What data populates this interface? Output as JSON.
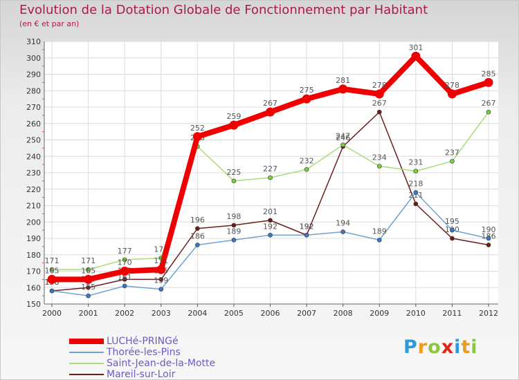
{
  "chart_data": {
    "type": "line",
    "title": "Evolution de la Dotation Globale de Fonctionnement par Habitant",
    "subtitle": "(en € et par an)",
    "x": [
      "2000",
      "2001",
      "2002",
      "2003",
      "2004",
      "2005",
      "2006",
      "2007",
      "2008",
      "2009",
      "2010",
      "2011",
      "2012"
    ],
    "ylim": [
      150,
      310
    ],
    "yticks": [
      150,
      160,
      170,
      180,
      190,
      200,
      210,
      220,
      230,
      240,
      250,
      260,
      270,
      280,
      290,
      300,
      310
    ],
    "xlabel": "",
    "ylabel": "",
    "series": [
      {
        "name": "Mareil-sur-Loir",
        "color": "#6b1c1c",
        "marker_color": "#6b1c1c",
        "labels_shown": true,
        "values": [
          158,
          160,
          165,
          165,
          196,
          198,
          201,
          192,
          246,
          267,
          211,
          190,
          186
        ],
        "labels": [
          "158",
          "160",
          "165",
          "165",
          "196",
          "198",
          "201",
          "192",
          "246",
          "267",
          "211",
          "190",
          "186"
        ]
      },
      {
        "name": "Thorée-les-Pins",
        "color": "#6fa3cf",
        "marker_color": "#3a78c2",
        "labels_shown": true,
        "values": [
          158,
          155,
          161,
          159,
          186,
          189,
          192,
          192,
          194,
          189,
          218,
          195,
          190
        ],
        "labels": [
          "158",
          "155",
          "161",
          "159",
          "186",
          "189",
          "192",
          "192",
          "194",
          "189",
          "218",
          "195",
          "190"
        ]
      },
      {
        "name": "Saint-Jean-de-la-Motte",
        "color": "#a8dc7a",
        "marker_color": "#7ccf3c",
        "labels_shown": true,
        "values": [
          171,
          171,
          177,
          178,
          246,
          225,
          227,
          232,
          247,
          234,
          231,
          237,
          267
        ],
        "labels": [
          "171",
          "171",
          "177",
          "178",
          "246",
          "225",
          "227",
          "232",
          "247",
          "234",
          "231",
          "237",
          "267"
        ]
      },
      {
        "name": "LUCHé-PRINGé",
        "color": "#ee0000",
        "marker_color": "#ee0000",
        "labels_shown": true,
        "values": [
          165,
          165,
          170,
          171,
          252,
          259,
          267,
          275,
          281,
          278,
          301,
          278,
          285
        ],
        "labels": [
          "165",
          "165",
          "170",
          "171",
          "252",
          "259",
          "267",
          "275",
          "281",
          "278",
          "301",
          "278",
          "285"
        ]
      }
    ],
    "legend": [
      {
        "name": "LUCHé-PRINGé",
        "color": "#ee0000",
        "text_color": "#6a5acd"
      },
      {
        "name": "Thorée-les-Pins",
        "color": "#6fa3cf",
        "text_color": "#6a5acd"
      },
      {
        "name": "Saint-Jean-de-la-Motte",
        "color": "#a8dc7a",
        "text_color": "#6a5acd"
      },
      {
        "name": "Mareil-sur-Loir",
        "color": "#6b1c1c",
        "text_color": "#6a5acd"
      }
    ],
    "legend_position": "bottom-left"
  },
  "brand": {
    "letters": [
      "P",
      "r",
      "o",
      "x",
      "i",
      "t",
      "i"
    ],
    "colors": [
      "#2f9ad6",
      "#f29a1e",
      "#8cc63f",
      "#e2231a",
      "#2f9ad6",
      "#f29a1e",
      "#8cc63f"
    ]
  }
}
